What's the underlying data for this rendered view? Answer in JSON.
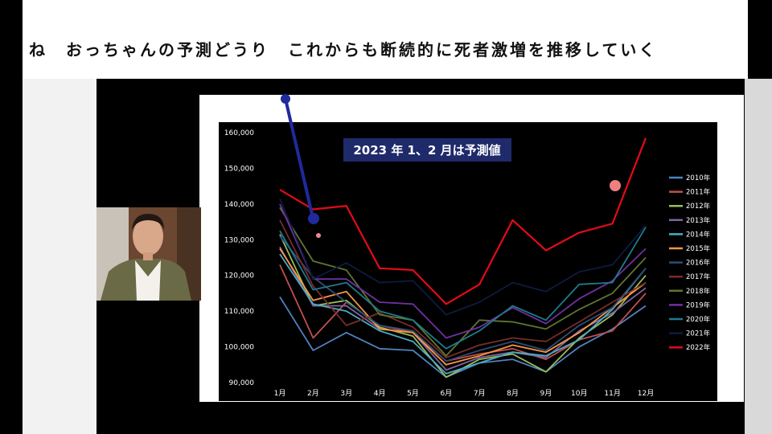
{
  "caption": "ね　おっちゃんの予測どうり　これからも断続的に死者激増を推移していく",
  "chart_data": {
    "type": "line",
    "title": "2023 年 1、2 月は予測値",
    "categories": [
      "1月",
      "2月",
      "3月",
      "4月",
      "5月",
      "6月",
      "7月",
      "8月",
      "9月",
      "10月",
      "11月",
      "12月"
    ],
    "ylim": [
      90000,
      160000
    ],
    "yticks": [
      "90,000",
      "100,000",
      "110,000",
      "120,000",
      "130,000",
      "140,000",
      "150,000",
      "160,000"
    ],
    "ytick_values": [
      90000,
      100000,
      110000,
      120000,
      130000,
      140000,
      150000,
      160000
    ],
    "legend_position": "right",
    "grid": false,
    "series": [
      {
        "name": "2010年",
        "color": "#4f81bd",
        "values": [
          114000,
          99000,
          104000,
          99500,
          99000,
          91500,
          95500,
          96500,
          93000,
          100000,
          105000,
          111500
        ]
      },
      {
        "name": "2011年",
        "color": "#c0504d",
        "values": [
          123000,
          102500,
          112500,
          106000,
          104000,
          96000,
          98000,
          99500,
          96500,
          102000,
          104500,
          115000
        ]
      },
      {
        "name": "2012年",
        "color": "#9bbb59",
        "values": [
          131500,
          111500,
          113000,
          105500,
          103000,
          91500,
          96500,
          98000,
          93000,
          102500,
          109000,
          120000
        ]
      },
      {
        "name": "2013年",
        "color": "#8064a2",
        "values": [
          128000,
          111500,
          111500,
          105000,
          104000,
          93500,
          97000,
          98500,
          97000,
          104500,
          109500,
          116500
        ]
      },
      {
        "name": "2014年",
        "color": "#4bacc6",
        "values": [
          126000,
          112000,
          110000,
          104500,
          101500,
          92500,
          95500,
          98500,
          97500,
          102000,
          110500,
          122000
        ]
      },
      {
        "name": "2015年",
        "color": "#f79646",
        "values": [
          127500,
          113000,
          115500,
          105000,
          104000,
          95000,
          97500,
          100500,
          98500,
          104000,
          111000,
          118000
        ]
      },
      {
        "name": "2016年",
        "color": "#2c4d75",
        "values": [
          131000,
          119500,
          112500,
          106000,
          104500,
          96000,
          99000,
          101500,
          99000,
          106000,
          111000,
          122000
        ]
      },
      {
        "name": "2017年",
        "color": "#772c2a",
        "values": [
          135500,
          117000,
          106000,
          109500,
          105500,
          97000,
          100500,
          102500,
          101500,
          107000,
          112500,
          118000
        ]
      },
      {
        "name": "2018年",
        "color": "#5f7530",
        "values": [
          139000,
          124000,
          121500,
          109000,
          107500,
          97500,
          107500,
          107000,
          105000,
          110500,
          115000,
          125000
        ]
      },
      {
        "name": "2019年",
        "color": "#7030a0",
        "values": [
          140000,
          119000,
          119000,
          112500,
          112000,
          102500,
          105500,
          111000,
          106500,
          113500,
          118500,
          127500
        ]
      },
      {
        "name": "2020年",
        "color": "#1f7a8c",
        "values": [
          132500,
          116000,
          118000,
          110000,
          107500,
          99500,
          104500,
          111500,
          107500,
          117500,
          118000,
          133500
        ]
      },
      {
        "name": "2021年",
        "color": "#0d1b3e",
        "values": [
          141500,
          119000,
          123500,
          118000,
          118500,
          109000,
          112500,
          118000,
          115500,
          121000,
          123000,
          134000
        ]
      },
      {
        "name": "2022年",
        "color": "#e30b17",
        "values": [
          144000,
          138500,
          139500,
          122000,
          121500,
          112000,
          117500,
          135500,
          127000,
          132000,
          134500,
          158500
        ]
      }
    ]
  }
}
